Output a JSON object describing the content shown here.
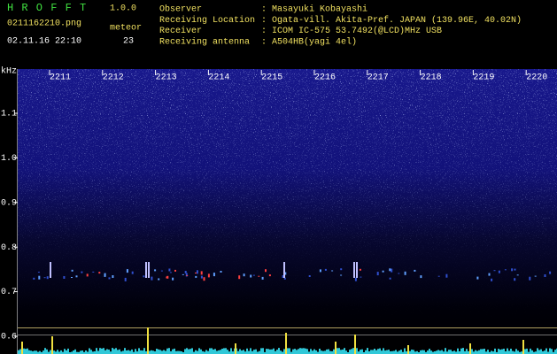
{
  "header": {
    "app_name": "H R O F F T",
    "version": "1.0.0",
    "file": "0211162210.png",
    "meteor_label": "meteor",
    "datetime": "02.11.16 22:10",
    "meteor_count": 23,
    "info": [
      {
        "label": "Observer",
        "value": ": Masayuki Kobayashi"
      },
      {
        "label": "Receiving Location",
        "value": ": Ogata-vill. Akita-Pref. JAPAN (139.96E, 40.02N)"
      },
      {
        "label": "Receiver",
        "value": ": ICOM IC-575 53.7492(@LCD)MHz USB"
      },
      {
        "label": "Receiving antenna",
        "value": ": A504HB(yagi 4el)"
      }
    ]
  },
  "spectrogram": {
    "freq_unit": "kHz",
    "freq_labels": [
      "1.1",
      "1.0",
      "0.9",
      "0.8",
      "0.7",
      "0.6"
    ],
    "time_labels": [
      "2211",
      "2212",
      "2213",
      "2214",
      "2215",
      "2216",
      "2217",
      "2218",
      "2219",
      "2220"
    ]
  }
}
